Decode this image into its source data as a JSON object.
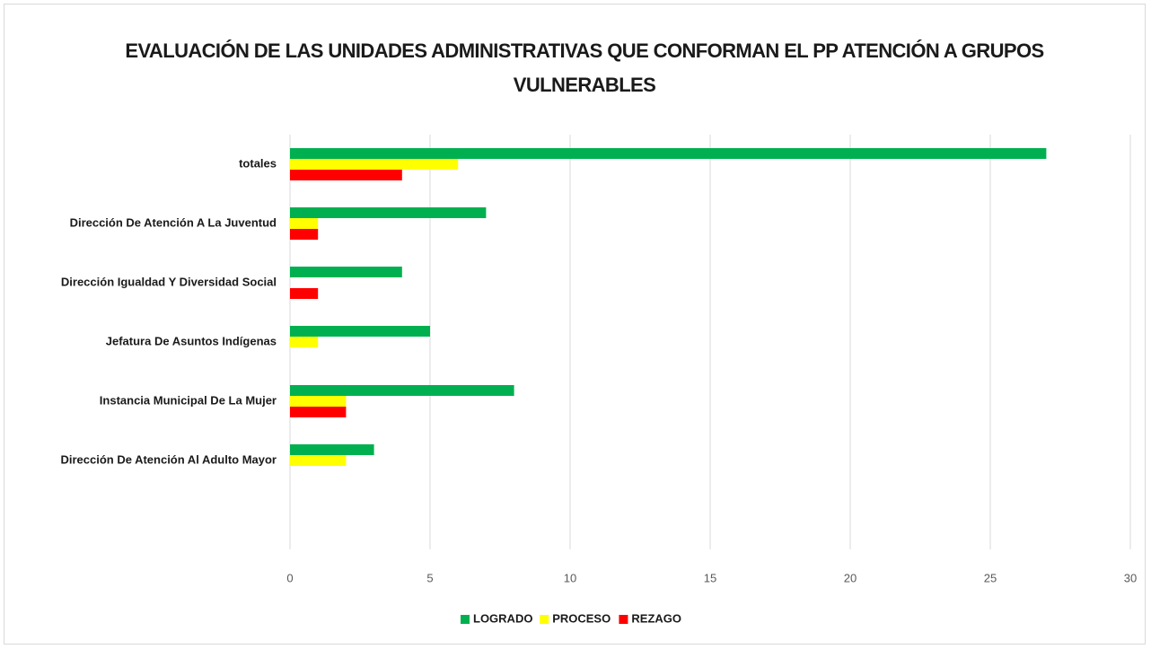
{
  "chart_data": {
    "type": "bar",
    "orientation": "horizontal",
    "title": "EVALUACIÓN DE LAS UNIDADES ADMINISTRATIVAS QUE CONFORMAN EL PP ATENCIÓN A GRUPOS VULNERABLES",
    "categories": [
      "totales",
      "Dirección De Atención A La Juventud",
      "Dirección Igualdad Y Diversidad Social",
      "Jefatura De Asuntos Indígenas",
      "Instancia Municipal De La Mujer",
      "Dirección De Atención Al Adulto Mayor",
      null
    ],
    "series": [
      {
        "name": "LOGRADO",
        "color": "#00b050",
        "values": [
          27,
          7,
          4,
          5,
          8,
          3,
          null
        ]
      },
      {
        "name": "PROCESO",
        "color": "#ffff00",
        "values": [
          6,
          1,
          0,
          1,
          2,
          2,
          null
        ]
      },
      {
        "name": "REZAGO",
        "color": "#ff0000",
        "values": [
          4,
          1,
          1,
          0,
          2,
          0,
          null
        ]
      }
    ],
    "xlim": [
      0,
      30
    ],
    "xticks": [
      0,
      5,
      10,
      15,
      20,
      25,
      30
    ],
    "grid": true,
    "legend": "bottom"
  }
}
